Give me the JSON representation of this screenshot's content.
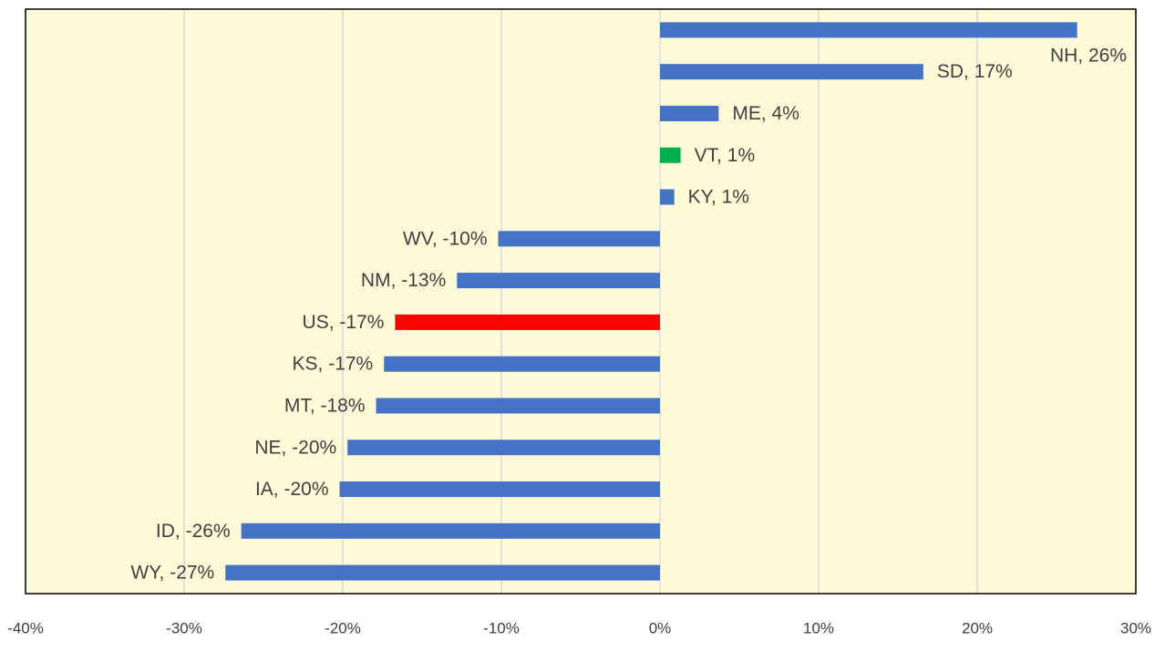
{
  "chart_data": {
    "type": "bar",
    "orientation": "horizontal",
    "values": [
      26.3,
      16.6,
      3.7,
      1.3,
      0.9,
      -10.2,
      -12.8,
      -16.7,
      -17.4,
      -17.9,
      -19.7,
      -20.2,
      -26.4,
      -27.4
    ],
    "value_labels": [
      "NH, 26%",
      "SD, 17%",
      "ME, 4%",
      "VT, 1%",
      "KY, 1%",
      "WV, -10%",
      "NM, -13%",
      "US, -17%",
      "KS, -17%",
      "MT, -18%",
      "NE, -20%",
      "IA, -20%",
      "ID, -26%",
      "WY, -27%"
    ],
    "colors": [
      "#4472c4",
      "#4472c4",
      "#4472c4",
      "#00b050",
      "#4472c4",
      "#4472c4",
      "#4472c4",
      "#ff0000",
      "#4472c4",
      "#4472c4",
      "#4472c4",
      "#4472c4",
      "#4472c4",
      "#4472c4"
    ],
    "xlim": [
      -40,
      30
    ],
    "xticks": [
      {
        "value": -40,
        "label": "-40%"
      },
      {
        "value": -30,
        "label": "-30%"
      },
      {
        "value": -20,
        "label": "-20%"
      },
      {
        "value": -10,
        "label": "-10%"
      },
      {
        "value": 0,
        "label": "0%"
      },
      {
        "value": 10,
        "label": "10%"
      },
      {
        "value": 20,
        "label": "20%"
      },
      {
        "value": 30,
        "label": "30%"
      }
    ],
    "grid": true
  }
}
